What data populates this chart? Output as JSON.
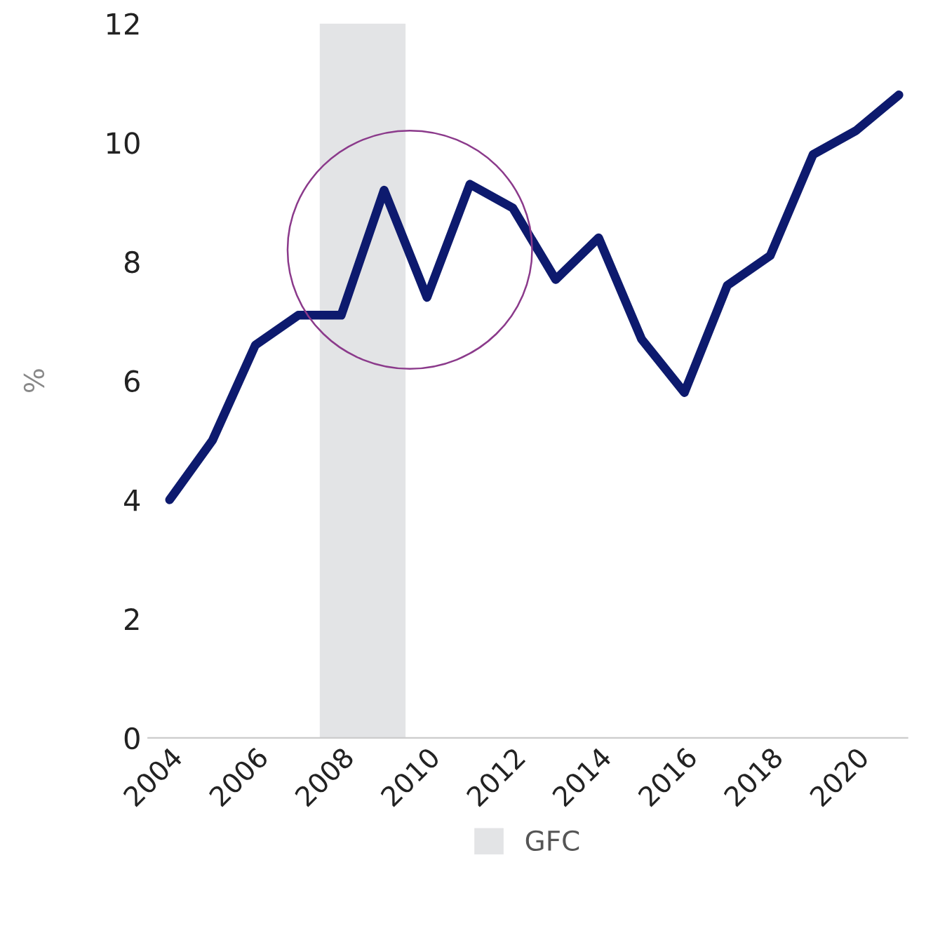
{
  "chart_data": {
    "type": "line",
    "ylabel": "%",
    "x": [
      2004,
      2005,
      2006,
      2007,
      2008,
      2009,
      2010,
      2011,
      2012,
      2013,
      2014,
      2015,
      2016,
      2017,
      2018,
      2019,
      2020,
      2021
    ],
    "series": [
      {
        "color": "#0d1a6e",
        "values": [
          4.0,
          5.0,
          6.6,
          7.1,
          7.1,
          9.2,
          7.4,
          9.3,
          8.9,
          7.7,
          8.4,
          6.7,
          5.8,
          7.6,
          8.1,
          9.8,
          10.2,
          10.8
        ]
      }
    ],
    "xlim": [
      2003.5,
      2021.2
    ],
    "xticks": [
      2004,
      2006,
      2008,
      2010,
      2012,
      2014,
      2016,
      2018,
      2020
    ],
    "ylim": [
      0,
      12
    ],
    "yticks": [
      0,
      2,
      4,
      6,
      8,
      10,
      12
    ],
    "bands": [
      {
        "axis": "x",
        "from": 2007.5,
        "to": 2009.5,
        "label": "GFC",
        "color": "#e3e4e6"
      }
    ],
    "grid": false,
    "legend": "bottom",
    "marker": "none",
    "line_style": "solid"
  }
}
